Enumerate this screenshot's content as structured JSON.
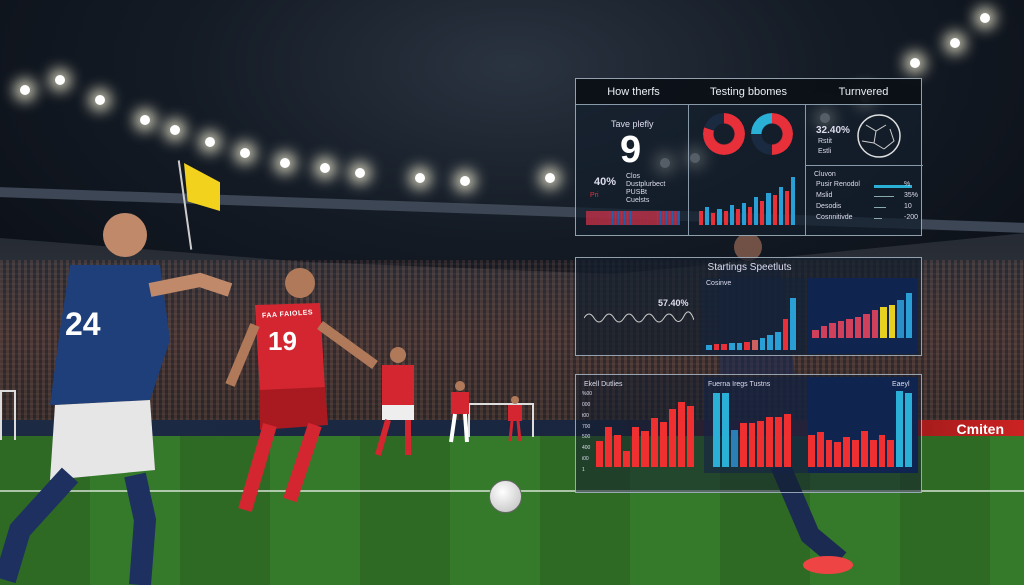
{
  "top_panel": {
    "headers": [
      "How therfs",
      "Testing bbomes",
      "Turnvered"
    ],
    "left": {
      "label": "Tave plefly",
      "big_number": "9",
      "percent": "40%",
      "legend": [
        "Clos",
        "Dustplurbect",
        "PUSBt",
        "Cuelsts"
      ],
      "key_label": "Pri"
    },
    "middle": {
      "bars": [
        14,
        18,
        12,
        16,
        14,
        20,
        16,
        22,
        18,
        28,
        24,
        32,
        30,
        38,
        34,
        48
      ],
      "colors": [
        "#e8303a",
        "#2a9fd6"
      ]
    },
    "right": {
      "percent": "32.40%",
      "items": [
        "Rstit",
        "Estli"
      ],
      "list_title": "Cluvon",
      "rows": [
        {
          "label": "Pusir Renodol",
          "value": "%",
          "fill": 0.95
        },
        {
          "label": "Mslid",
          "value": "35%",
          "fill": 0.5
        },
        {
          "label": "Desodis",
          "value": "10",
          "fill": 0.3
        },
        {
          "label": "Cosnnitivde",
          "value": "-200",
          "fill": 0.2
        }
      ]
    }
  },
  "middle_panel": {
    "title": "Startings Speetluts",
    "percent": "57.40%",
    "chart2_label": "Cosinve",
    "chart2_bars": [
      8,
      10,
      10,
      11,
      12,
      13,
      16,
      20,
      24,
      30,
      50,
      85
    ],
    "chart2_colors": [
      "#2a9fd6",
      "#e8303a",
      "#e8303a",
      "#2a9fd6",
      "#2a9fd6",
      "#e8303a",
      "#d06060",
      "#2a9fd6",
      "#2a9fd6",
      "#2a9fd6",
      "#e8303a",
      "#2a9fd6"
    ],
    "chart3_bars": [
      15,
      22,
      28,
      32,
      36,
      40,
      46,
      52,
      58,
      62,
      72,
      85
    ],
    "chart3_colors": [
      "#d0405a",
      "#d0405a",
      "#d0405a",
      "#d0405a",
      "#d0405a",
      "#d0405a",
      "#d0405a",
      "#d0405a",
      "#e8d020",
      "#e8d020",
      "#2a8fc6",
      "#2a9fd6"
    ]
  },
  "bottom_panel": {
    "left_label": "Ekell Dutlies",
    "left_ticks": [
      "%00",
      "000",
      "t00",
      "700",
      "500",
      "400",
      "i00",
      "1"
    ],
    "left_bars": [
      40,
      60,
      48,
      24,
      60,
      55,
      75,
      68,
      88,
      98,
      92
    ],
    "mid_label": "Fuerna Iregs Tustns",
    "mid_bars": [
      100,
      100,
      50,
      60,
      60,
      62,
      68,
      68,
      72
    ],
    "mid_colors": [
      "#2ab0d6",
      "#2ab0d6",
      "#2a80b6",
      "#f03030",
      "#f03030",
      "#f03030",
      "#f03030",
      "#f03030",
      "#f03030"
    ],
    "right_label": "Eaeyl",
    "right_bars": [
      42,
      46,
      36,
      33,
      40,
      36,
      48,
      35,
      42,
      36,
      100,
      98
    ],
    "right_colors": [
      "#f03030",
      "#f03030",
      "#f03030",
      "#f03030",
      "#f03030",
      "#f03030",
      "#f03030",
      "#f03030",
      "#f03030",
      "#f03030",
      "#2ab0d6",
      "#2ab0d6"
    ]
  },
  "scene": {
    "ad_text": "Cmiten",
    "jersey_left": "24",
    "jersey_center": "19",
    "jersey_name": "FAA FAIOLES"
  }
}
